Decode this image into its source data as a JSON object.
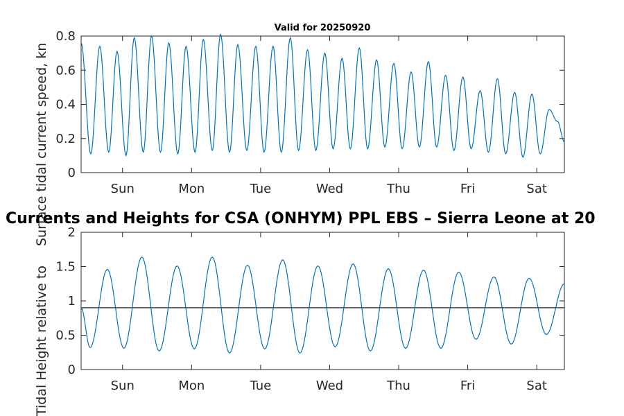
{
  "chart_data": [
    {
      "type": "line",
      "title": "Valid for 20250920",
      "ylabel": "Surface tidal current speed, kn",
      "ylim": [
        0,
        0.8
      ],
      "yticks": [
        0,
        0.2,
        0.4,
        0.6,
        0.8
      ],
      "ytick_labels": [
        "0",
        "0.2",
        "0.4",
        "0.6",
        "0.8"
      ],
      "xlim": [
        0,
        7
      ],
      "xticks": [
        0.6,
        1.6,
        2.6,
        3.6,
        4.6,
        5.6,
        6.6
      ],
      "xtick_labels": [
        "Sun",
        "Mon",
        "Tue",
        "Wed",
        "Thu",
        "Fri",
        "Sat"
      ],
      "grid": false,
      "series_color": "#0072bd",
      "series": [
        {
          "x": [
            0,
            0.14,
            0.27,
            0.4,
            0.52,
            0.65,
            0.77,
            0.9,
            1.02,
            1.15,
            1.27,
            1.4,
            1.52,
            1.65,
            1.77,
            1.9,
            2.02,
            2.15,
            2.27,
            2.4,
            2.53,
            2.65,
            2.78,
            2.9,
            3.03,
            3.15,
            3.28,
            3.4,
            3.53,
            3.65,
            3.78,
            3.9,
            4.03,
            4.15,
            4.28,
            4.4,
            4.53,
            4.65,
            4.78,
            4.9,
            5.03,
            5.15,
            5.28,
            5.4,
            5.53,
            5.65,
            5.78,
            5.9,
            6.03,
            6.15,
            6.28,
            6.4,
            6.53,
            6.65,
            6.78,
            6.9,
            7.0
          ],
          "y": [
            0.76,
            0.11,
            0.74,
            0.12,
            0.71,
            0.1,
            0.79,
            0.12,
            0.8,
            0.12,
            0.76,
            0.11,
            0.74,
            0.12,
            0.78,
            0.13,
            0.81,
            0.12,
            0.75,
            0.13,
            0.74,
            0.12,
            0.74,
            0.12,
            0.79,
            0.13,
            0.72,
            0.13,
            0.7,
            0.14,
            0.67,
            0.14,
            0.73,
            0.14,
            0.66,
            0.15,
            0.64,
            0.14,
            0.59,
            0.15,
            0.65,
            0.15,
            0.57,
            0.13,
            0.56,
            0.14,
            0.48,
            0.12,
            0.55,
            0.11,
            0.47,
            0.09,
            0.46,
            0.11,
            0.37,
            0.3,
            0.18
          ]
        }
      ]
    },
    {
      "type": "line",
      "title": "Currents and Heights for CSA (ONHYM) PPL EBS  – Sierra Leone at 20",
      "ylabel": "Tidal Height relative to",
      "ylim": [
        0,
        2
      ],
      "yticks": [
        0,
        0.5,
        1,
        1.5,
        2
      ],
      "ytick_labels": [
        "0",
        "0.5",
        "1",
        "1.5",
        "2"
      ],
      "xlim": [
        0,
        7
      ],
      "xticks": [
        0.6,
        1.6,
        2.6,
        3.6,
        4.6,
        5.6,
        6.6
      ],
      "xtick_labels": [
        "Sun",
        "Mon",
        "Tue",
        "Wed",
        "Thu",
        "Fri",
        "Sat"
      ],
      "grid": false,
      "reference_line": 0.9,
      "reference_color": "#262626",
      "series_color": "#0072bd",
      "series": [
        {
          "x": [
            0,
            0.13,
            0.38,
            0.62,
            0.88,
            1.13,
            1.39,
            1.64,
            1.9,
            2.15,
            2.41,
            2.66,
            2.92,
            3.17,
            3.43,
            3.68,
            3.94,
            4.19,
            4.45,
            4.7,
            4.96,
            5.21,
            5.47,
            5.72,
            5.98,
            6.23,
            6.49,
            6.74,
            7.0
          ],
          "y": [
            0.9,
            0.32,
            1.46,
            0.31,
            1.64,
            0.27,
            1.51,
            0.3,
            1.64,
            0.24,
            1.52,
            0.3,
            1.6,
            0.24,
            1.51,
            0.33,
            1.54,
            0.27,
            1.47,
            0.31,
            1.45,
            0.31,
            1.42,
            0.44,
            1.35,
            0.37,
            1.33,
            0.51,
            1.25
          ]
        }
      ]
    }
  ]
}
